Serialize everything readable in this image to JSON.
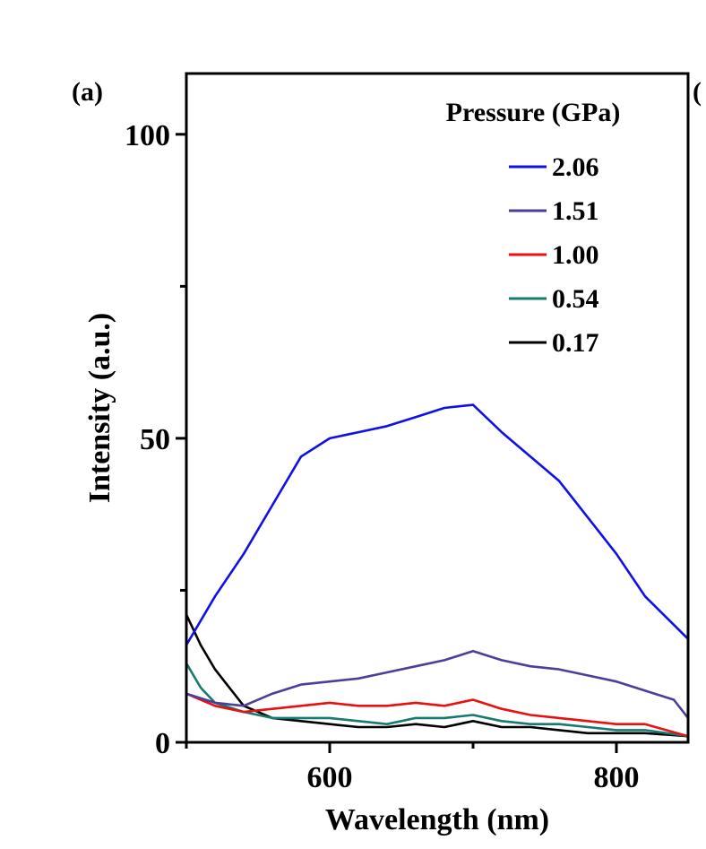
{
  "chart_data": {
    "type": "line",
    "panel_label": "(a)",
    "xlabel": "Wavelength (nm)",
    "ylabel": "Intensity (a.u.)",
    "xlim": [
      500,
      850
    ],
    "ylim": [
      0,
      110
    ],
    "x_ticks": [
      600,
      800
    ],
    "y_ticks": [
      0,
      50,
      100
    ],
    "grid": false,
    "legend": {
      "title": "Pressure (GPa)",
      "position": "top-right"
    },
    "series": [
      {
        "name": "2.06",
        "color": "#1010e6",
        "x": [
          500,
          520,
          540,
          560,
          580,
          600,
          620,
          640,
          660,
          680,
          700,
          720,
          740,
          760,
          780,
          800,
          820,
          850
        ],
        "y": [
          16,
          24,
          31,
          39,
          47,
          50,
          51,
          52,
          53.5,
          55,
          55.5,
          51,
          47,
          43,
          37,
          31,
          24,
          17
        ]
      },
      {
        "name": "1.51",
        "color": "#4a3f9a",
        "x": [
          500,
          520,
          540,
          560,
          580,
          600,
          620,
          640,
          660,
          680,
          700,
          720,
          740,
          760,
          780,
          800,
          820,
          840,
          850
        ],
        "y": [
          8,
          6.5,
          6,
          8,
          9.5,
          10,
          10.5,
          11.5,
          12.5,
          13.5,
          15,
          13.5,
          12.5,
          12,
          11,
          10,
          8.5,
          7,
          4
        ]
      },
      {
        "name": "1.00",
        "color": "#e81010",
        "x": [
          500,
          520,
          540,
          560,
          580,
          600,
          620,
          640,
          660,
          680,
          700,
          720,
          740,
          760,
          780,
          800,
          820,
          850
        ],
        "y": [
          8,
          6,
          5,
          5.5,
          6,
          6.5,
          6,
          6,
          6.5,
          6,
          7,
          5.5,
          4.5,
          4,
          3.5,
          3,
          3,
          1
        ]
      },
      {
        "name": "0.54",
        "color": "#157a70",
        "x": [
          500,
          510,
          520,
          540,
          560,
          580,
          600,
          620,
          640,
          660,
          680,
          700,
          720,
          740,
          760,
          780,
          800,
          820,
          850
        ],
        "y": [
          13,
          9,
          6.5,
          5,
          4,
          4,
          4,
          3.5,
          3,
          4,
          4,
          4.5,
          3.5,
          3,
          3,
          2.5,
          2,
          2,
          1
        ]
      },
      {
        "name": "0.17",
        "color": "#000000",
        "x": [
          500,
          510,
          520,
          530,
          540,
          560,
          580,
          600,
          620,
          640,
          660,
          680,
          700,
          720,
          740,
          760,
          780,
          800,
          820,
          850
        ],
        "y": [
          21,
          16,
          12,
          9,
          6,
          4,
          3.5,
          3,
          2.5,
          2.5,
          3,
          2.5,
          3.5,
          2.5,
          2.5,
          2,
          1.5,
          1.5,
          1.5,
          1
        ]
      }
    ]
  }
}
